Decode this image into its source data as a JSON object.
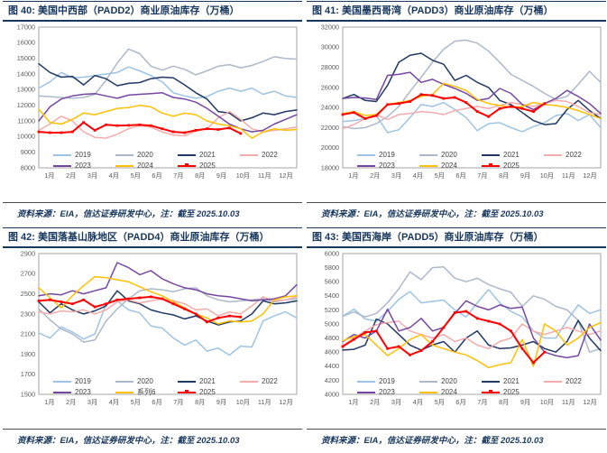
{
  "page": {
    "background": "#ffffff",
    "source_note": "资料来源：EIA，信达证券研发中心，注：截至 2025.10.03"
  },
  "palette": {
    "title_navy": "#17375E",
    "axis_text": "#595959",
    "plot_border": "#a6a6a6",
    "footer_rule": "#4d4d4d"
  },
  "chart_data": [
    {
      "id": "padd2",
      "type": "line",
      "title": "图 40: 美国中西部（PADD2）商业原油库存（万桶）",
      "source": "资料来源：EIA，信达证券研发中心，注：截至 2025.10.03",
      "xlabel": "",
      "ylabel": "",
      "x_labels": [
        "1月",
        "2月",
        "3月",
        "4月",
        "5月",
        "6月",
        "7月",
        "8月",
        "9月",
        "10月",
        "11月",
        "12月"
      ],
      "ylim": [
        8000,
        17000
      ],
      "y_ticks": [
        8000,
        9000,
        10000,
        11000,
        12000,
        13000,
        14000,
        15000,
        16000,
        17000
      ],
      "grid": false,
      "legend_position": "inside-bottom",
      "series": [
        {
          "name": "2019",
          "color": "#9DC3E6",
          "markers": false,
          "values": [
            13100,
            13500,
            14100,
            13750,
            13800,
            13900,
            14000,
            14100,
            14450,
            14200,
            13900,
            13500,
            12800,
            12600,
            12450,
            12550,
            12900,
            13100,
            12900,
            13100,
            12700,
            12900,
            12600,
            12500
          ]
        },
        {
          "name": "2020",
          "color": "#ADB9CA",
          "markers": false,
          "values": [
            12600,
            12550,
            12500,
            12450,
            12500,
            12700,
            13600,
            14700,
            15600,
            15300,
            14500,
            14250,
            14500,
            14300,
            13950,
            14200,
            14500,
            14600,
            14400,
            14550,
            14800,
            15100,
            15000,
            14950
          ]
        },
        {
          "name": "2021",
          "color": "#203864",
          "markers": false,
          "values": [
            14650,
            14100,
            13800,
            13850,
            13300,
            13900,
            13700,
            13250,
            13400,
            13450,
            13700,
            13800,
            13750,
            13300,
            12800,
            12400,
            11600,
            11500,
            11000,
            11200,
            11500,
            11400,
            11600,
            11700
          ]
        },
        {
          "name": "2022",
          "color": "#F4ABAB",
          "markers": false,
          "values": [
            10400,
            10800,
            11300,
            11000,
            10300,
            9950,
            9900,
            10150,
            10500,
            10700,
            10600,
            10300,
            10100,
            10050,
            10350,
            10500,
            11200,
            11600,
            11100,
            10500,
            10300,
            10400,
            10500,
            10600
          ]
        },
        {
          "name": "2023",
          "color": "#7647A2",
          "markers": false,
          "values": [
            11000,
            11900,
            12400,
            12600,
            12700,
            12750,
            12600,
            12450,
            12650,
            12700,
            12750,
            12800,
            12500,
            12400,
            12200,
            11800,
            11300,
            10800,
            10500,
            10300,
            10400,
            10800,
            11100,
            11400
          ]
        },
        {
          "name": "2024",
          "color": "#FFC000",
          "markers": false,
          "values": [
            11750,
            10900,
            10800,
            11100,
            11500,
            11400,
            11600,
            11800,
            11850,
            12000,
            11900,
            11500,
            11300,
            11500,
            11400,
            11000,
            10800,
            10700,
            10500,
            9900,
            10300,
            10500,
            10400,
            10450
          ]
        },
        {
          "name": "2025",
          "color": "#FF0000",
          "markers": true,
          "values": [
            10300,
            10250,
            10250,
            10300,
            10900,
            10400,
            10750,
            10700,
            10720,
            10750,
            10700,
            10500,
            10300,
            10250,
            10400,
            10500,
            10450,
            10550,
            10200,
            null,
            null,
            null,
            null,
            null
          ]
        }
      ]
    },
    {
      "id": "padd3",
      "type": "line",
      "title": "图 41: 美国墨西哥湾（PADD3）商业原油库存（万桶）",
      "source": "资料来源：EIA，信达证券研发中心，注：截至 2025.10.03",
      "xlabel": "",
      "ylabel": "",
      "x_labels": [
        "1月",
        "2月",
        "3月",
        "4月",
        "5月",
        "6月",
        "7月",
        "8月",
        "9月",
        "10月",
        "11月",
        "12月"
      ],
      "ylim": [
        18000,
        32000
      ],
      "y_ticks": [
        18000,
        20000,
        22000,
        24000,
        26000,
        28000,
        30000,
        32000
      ],
      "grid": false,
      "legend_position": "inside-bottom",
      "series": [
        {
          "name": "2019",
          "color": "#9DC3E6",
          "markers": false,
          "values": [
            22600,
            22700,
            22900,
            23200,
            21500,
            21800,
            23000,
            24300,
            24100,
            24500,
            23800,
            23000,
            21700,
            22400,
            22500,
            22000,
            21600,
            22100,
            22500,
            23200,
            23400,
            22700,
            23300,
            22000
          ]
        },
        {
          "name": "2020",
          "color": "#ADB9CA",
          "markers": false,
          "values": [
            22100,
            21900,
            22000,
            22400,
            23100,
            24100,
            25600,
            27000,
            28500,
            29800,
            30600,
            30700,
            30400,
            29600,
            28500,
            27300,
            26700,
            26100,
            25400,
            24800,
            25100,
            26300,
            27600,
            26500
          ]
        },
        {
          "name": "2021",
          "color": "#203864",
          "markers": false,
          "values": [
            24900,
            25300,
            24700,
            24600,
            26200,
            28500,
            29200,
            29400,
            28700,
            28300,
            26700,
            27200,
            26500,
            26000,
            24700,
            24300,
            23500,
            22700,
            22300,
            22400,
            23800,
            24700,
            23700,
            22900
          ]
        },
        {
          "name": "2022",
          "color": "#F4ABAB",
          "markers": false,
          "values": [
            21900,
            22300,
            22900,
            23300,
            22800,
            23300,
            23400,
            23600,
            23500,
            23300,
            23700,
            23900,
            24100,
            23900,
            24200,
            24500,
            24300,
            24100,
            24400,
            24700,
            24600,
            24100,
            23500,
            23300
          ]
        },
        {
          "name": "2023",
          "color": "#7647A2",
          "markers": false,
          "values": [
            24900,
            25000,
            24950,
            24800,
            27200,
            27300,
            27500,
            26500,
            26800,
            26300,
            25900,
            25400,
            24700,
            24900,
            25900,
            25400,
            24300,
            23800,
            24400,
            24900,
            25700,
            25100,
            24400,
            23400
          ]
        },
        {
          "name": "2024",
          "color": "#FFC000",
          "markers": false,
          "values": [
            23400,
            23600,
            23200,
            23300,
            24300,
            24500,
            24700,
            25100,
            25300,
            26400,
            26100,
            25700,
            24800,
            24400,
            24200,
            24000,
            24100,
            24500,
            24300,
            24200,
            24000,
            23700,
            23300,
            22900
          ]
        },
        {
          "name": "2025",
          "color": "#FF0000",
          "markers": true,
          "values": [
            23300,
            23500,
            22900,
            23200,
            24300,
            24400,
            24600,
            25300,
            25200,
            24900,
            25000,
            24500,
            23600,
            23100,
            23900,
            24100,
            23900,
            23600,
            24400,
            null,
            null,
            null,
            null,
            null
          ]
        }
      ]
    },
    {
      "id": "padd4",
      "type": "line",
      "title": "图 42: 美国落基山脉地区（PADD4）商业原油库存（万桶）",
      "source": "资料来源：EIA，信达证券研发中心，注：截至 2025.10.03",
      "xlabel": "",
      "ylabel": "",
      "x_labels": [
        "1月",
        "2月",
        "3月",
        "4月",
        "5月",
        "6月",
        "7月",
        "8月",
        "9月",
        "10月",
        "11月",
        "12月"
      ],
      "ylim": [
        1500,
        2900
      ],
      "y_ticks": [
        1500,
        1700,
        1900,
        2100,
        2300,
        2500,
        2700,
        2900
      ],
      "grid": false,
      "legend_position": "inside-bottom",
      "series": [
        {
          "name": "2019",
          "color": "#9DC3E6",
          "markers": false,
          "values": [
            2110,
            2060,
            2170,
            2120,
            2050,
            2100,
            2400,
            2430,
            2340,
            2310,
            2180,
            2160,
            2060,
            1990,
            2040,
            1930,
            1960,
            1890,
            1980,
            1970,
            2230,
            2280,
            2320,
            2260
          ]
        },
        {
          "name": "2020",
          "color": "#ADB9CA",
          "markers": false,
          "values": [
            2350,
            2240,
            2150,
            2100,
            2020,
            2040,
            2230,
            2350,
            2450,
            2530,
            2550,
            2540,
            2520,
            2550,
            2560,
            2480,
            2440,
            2420,
            2430,
            2440,
            2450,
            2420,
            2440,
            2450
          ]
        },
        {
          "name": "2021",
          "color": "#203864",
          "markers": false,
          "values": [
            2420,
            2310,
            2400,
            2340,
            2300,
            2330,
            2380,
            2530,
            2430,
            2400,
            2340,
            2310,
            2290,
            2250,
            2280,
            2230,
            2190,
            2220,
            2230,
            2300,
            2430,
            2400,
            2410,
            2430
          ]
        },
        {
          "name": "2022",
          "color": "#F4ABAB",
          "markers": false,
          "values": [
            2320,
            2300,
            2330,
            2320,
            2340,
            2300,
            2340,
            2420,
            2440,
            2410,
            2430,
            2450,
            2430,
            2400,
            2340,
            2350,
            2280,
            2320,
            2300,
            2380,
            2470,
            2430,
            2440,
            2470
          ]
        },
        {
          "name": "2023",
          "color": "#7647A2",
          "markers": false,
          "values": [
            2480,
            2500,
            2490,
            2530,
            2500,
            2530,
            2560,
            2810,
            2760,
            2690,
            2730,
            2650,
            2600,
            2560,
            2540,
            2500,
            2480,
            2470,
            2450,
            2430,
            2440,
            2450,
            2480,
            2590
          ]
        },
        {
          "name": "系列6",
          "color": "#FFC000",
          "markers": false,
          "values": [
            2560,
            2460,
            2360,
            2480,
            2580,
            2670,
            2660,
            2640,
            2620,
            2570,
            2520,
            2480,
            2420,
            2360,
            2300,
            2260,
            2200,
            2230,
            2220,
            2230,
            2300,
            2440,
            2470,
            2480
          ]
        },
        {
          "name": "2025",
          "color": "#FF0000",
          "markers": true,
          "values": [
            2430,
            2440,
            2420,
            2400,
            2440,
            2370,
            2400,
            2440,
            2450,
            2460,
            2470,
            2450,
            2400,
            2350,
            2300,
            2220,
            2260,
            2280,
            2270,
            null,
            null,
            null,
            null,
            null
          ]
        }
      ]
    },
    {
      "id": "padd5",
      "type": "line",
      "title": "图 43: 美国西海岸（PADD5）商业原油库存（万桶）",
      "source": "资料来源：EIA，信达证券研发中心，注：截至 2025.10.03",
      "xlabel": "",
      "ylabel": "",
      "x_labels": [
        "1月",
        "2月",
        "3月",
        "4月",
        "5月",
        "6月",
        "7月",
        "8月",
        "9月",
        "10月",
        "11月",
        "12月"
      ],
      "ylim": [
        4000,
        6000
      ],
      "y_ticks": [
        4000,
        4200,
        4400,
        4600,
        4800,
        5000,
        5200,
        5400,
        5600,
        5800,
        6000
      ],
      "grid": false,
      "legend_position": "inside-bottom",
      "series": [
        {
          "name": "2019",
          "color": "#9DC3E6",
          "markers": false,
          "values": [
            5110,
            5210,
            5070,
            5040,
            5180,
            5350,
            5460,
            5300,
            5320,
            5340,
            5200,
            5100,
            5300,
            5490,
            5300,
            5180,
            5100,
            4900,
            4800,
            4800,
            5050,
            5270,
            5150,
            5200
          ]
        },
        {
          "name": "2020",
          "color": "#ADB9CA",
          "markers": false,
          "values": [
            5110,
            5170,
            5100,
            5150,
            5300,
            5500,
            5740,
            5630,
            5800,
            5810,
            5650,
            5600,
            5650,
            5560,
            5500,
            5450,
            5250,
            5400,
            5350,
            5250,
            5200,
            5050,
            4600,
            4650
          ]
        },
        {
          "name": "2021",
          "color": "#203864",
          "markers": false,
          "values": [
            4630,
            4640,
            4700,
            5070,
            5000,
            4850,
            4700,
            4630,
            4700,
            4750,
            4600,
            4800,
            4900,
            4700,
            4650,
            4660,
            4700,
            4750,
            4650,
            4600,
            4750,
            5050,
            4800,
            4620
          ]
        },
        {
          "name": "2022",
          "color": "#F4ABAB",
          "markers": false,
          "values": [
            4690,
            4800,
            4900,
            4990,
            5020,
            5040,
            4900,
            4850,
            4800,
            4850,
            4750,
            4800,
            4700,
            4650,
            4750,
            4800,
            5000,
            4900,
            4850,
            4900,
            4950,
            4900,
            4850,
            4900
          ]
        },
        {
          "name": "2023",
          "color": "#7647A2",
          "markers": false,
          "values": [
            4750,
            4850,
            4800,
            4900,
            5210,
            4900,
            4950,
            5080,
            4900,
            4950,
            5150,
            5330,
            5250,
            5200,
            5270,
            5220,
            5240,
            4800,
            4600,
            4550,
            4520,
            4550,
            5000,
            4770
          ]
        },
        {
          "name": "2024",
          "color": "#FFC000",
          "markers": false,
          "values": [
            4760,
            4820,
            4850,
            4700,
            4550,
            4650,
            4780,
            4850,
            4700,
            4650,
            4600,
            4560,
            4480,
            4380,
            4420,
            4450,
            4780,
            4400,
            5000,
            4900,
            4700,
            4800,
            4950,
            5020
          ]
        },
        {
          "name": "2025",
          "color": "#FF0000",
          "markers": true,
          "values": [
            4680,
            4780,
            4880,
            4900,
            4650,
            4680,
            4560,
            4620,
            4750,
            4950,
            5160,
            5180,
            5080,
            5040,
            5000,
            4900,
            4650,
            4450,
            4600,
            null,
            null,
            null,
            null,
            null
          ]
        }
      ]
    }
  ]
}
